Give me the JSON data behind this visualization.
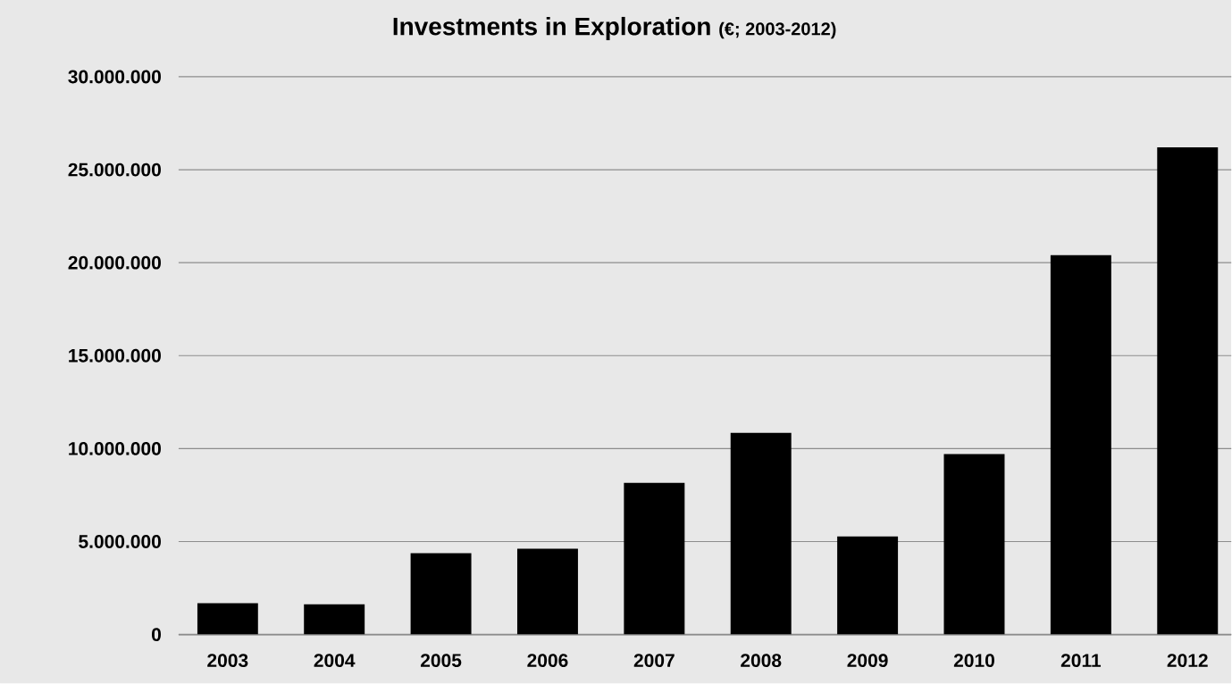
{
  "chart_data": {
    "type": "bar",
    "title": "Investments in Exploration",
    "subtitle": "(€; 2003-2012)",
    "categories": [
      "2003",
      "2004",
      "2005",
      "2006",
      "2007",
      "2008",
      "2009",
      "2010",
      "2011",
      "2012"
    ],
    "values": [
      1680000,
      1630000,
      4370000,
      4610000,
      8160000,
      10850000,
      5280000,
      9700000,
      20400000,
      26200000
    ],
    "color": "#000000",
    "ylim": [
      0,
      30000000
    ],
    "yticks": [
      {
        "value": 0,
        "label": "0"
      },
      {
        "value": 5000000,
        "label": "5.000.000"
      },
      {
        "value": 10000000,
        "label": "10.000.000"
      },
      {
        "value": 15000000,
        "label": "15.000.000"
      },
      {
        "value": 20000000,
        "label": "20.000.000"
      },
      {
        "value": 25000000,
        "label": "25.000.000"
      },
      {
        "value": 30000000,
        "label": "30.000.000"
      }
    ],
    "grid": "y"
  }
}
